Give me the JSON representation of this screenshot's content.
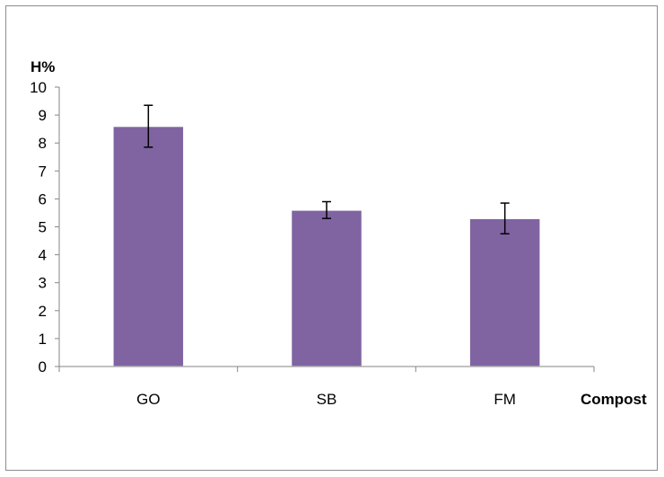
{
  "chart_data": {
    "type": "bar",
    "categories": [
      "GO",
      "SB",
      "FM"
    ],
    "values": [
      8.6,
      5.6,
      5.3
    ],
    "error": [
      0.75,
      0.3,
      0.55
    ],
    "ylabel": "H%",
    "xlabel": "Compost",
    "ylim": [
      0,
      10
    ],
    "yticks": [
      "0",
      "1",
      "2",
      "3",
      "4",
      "5",
      "6",
      "7",
      "8",
      "9",
      "10"
    ],
    "grid": false,
    "legend": "none",
    "bar_color": "#8064a2"
  }
}
